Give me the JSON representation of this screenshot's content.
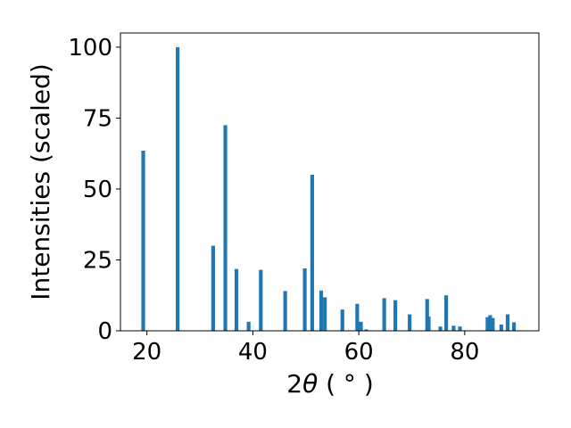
{
  "chart_data": {
    "type": "bar",
    "title": "",
    "xlabel": "2θ (°)",
    "xlabel_parts": {
      "prefix": "2",
      "symbol": "θ",
      "unit": " ( ° )"
    },
    "ylabel": "Intensities (scaled)",
    "xlim": [
      15,
      94
    ],
    "ylim": [
      0,
      105
    ],
    "xticks": [
      20,
      40,
      60,
      80
    ],
    "yticks": [
      0,
      25,
      50,
      75,
      100
    ],
    "bar_width": 0.7,
    "grid": false,
    "legend": "none",
    "color": "#1f77b4",
    "x": [
      19.3,
      25.8,
      32.5,
      34.8,
      36.9,
      39.2,
      41.5,
      46.1,
      49.8,
      51.2,
      52.9,
      53.6,
      56.9,
      59.7,
      60.4,
      61.4,
      64.8,
      66.9,
      69.6,
      72.9,
      73.2,
      75.4,
      76.5,
      77.9,
      79.1,
      84.3,
      84.8,
      85.3,
      86.9,
      88.1,
      89.3
    ],
    "values": [
      63.5,
      100,
      30,
      72.5,
      21.8,
      3.2,
      21.5,
      14,
      22,
      55,
      14.2,
      11.8,
      7.5,
      9.5,
      3.2,
      0.5,
      11.5,
      10.8,
      5.8,
      11.2,
      5,
      1.5,
      12.5,
      1.8,
      1.5,
      4.8,
      5.5,
      4.5,
      2.2,
      5.8,
      3
    ]
  }
}
